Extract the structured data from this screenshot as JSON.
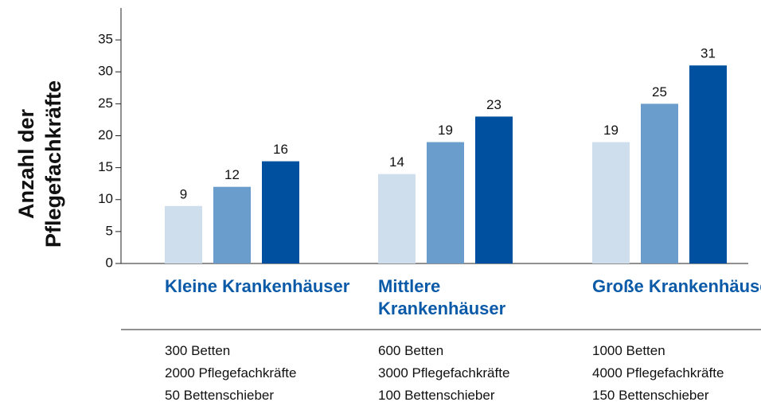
{
  "chart_data": {
    "type": "bar",
    "y_label": "Anzahl der Pflegefachkräfte",
    "categories": [
      "Kleine Krankenhäuser",
      "Mittlere Krankenhäuser",
      "Große Krankenhäuser"
    ],
    "details": [
      [
        "300 Betten",
        "2000 Pflegefachkräfte",
        "50 Bettenschieber"
      ],
      [
        "600 Betten",
        "3000 Pflegefachkräfte",
        "100 Bettenschieber"
      ],
      [
        "1000 Betten",
        "4000 Pflegefachkräfte",
        "150 Bettenschieber"
      ]
    ],
    "series": [
      {
        "color": "#cfdeec",
        "values": [
          9,
          14,
          19
        ]
      },
      {
        "color": "#6a9dcb",
        "values": [
          12,
          19,
          25
        ]
      },
      {
        "color": "#0050a0",
        "values": [
          16,
          23,
          31
        ]
      }
    ],
    "category_color": "#0a5aa8",
    "ylim": [
      0,
      40
    ],
    "yticks": [
      0,
      5,
      10,
      15,
      20,
      25,
      30,
      35
    ],
    "grid": false
  }
}
